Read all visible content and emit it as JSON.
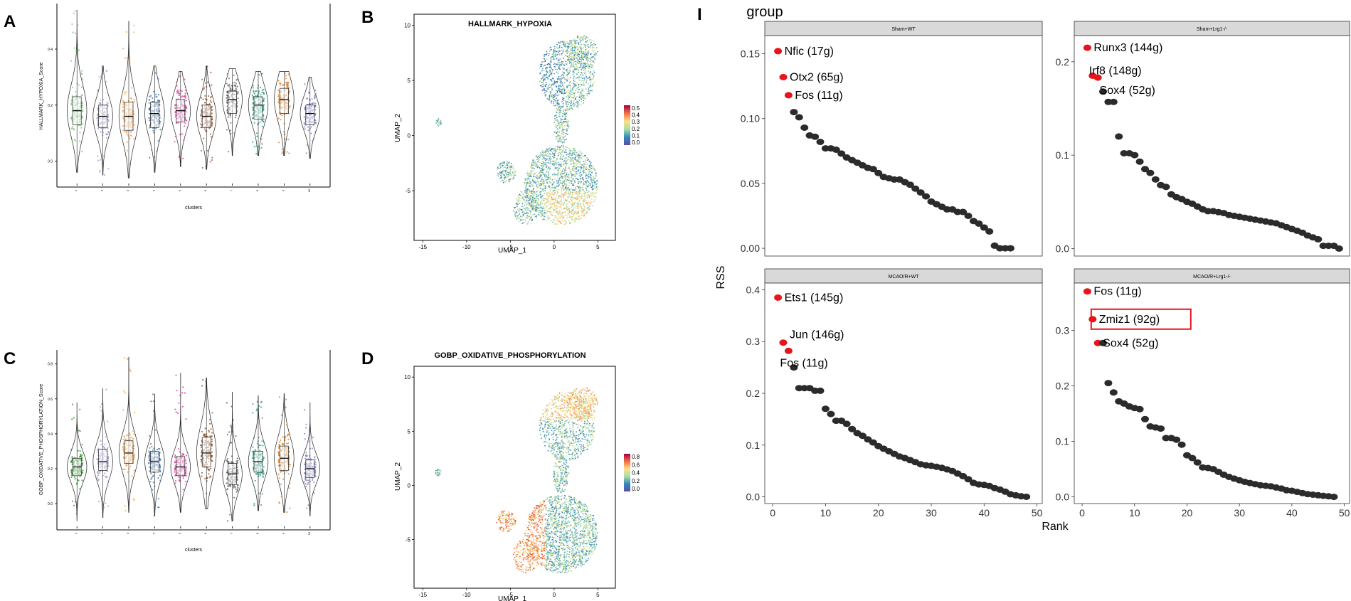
{
  "panels": {
    "A": {
      "letter": "A"
    },
    "B": {
      "letter": "B"
    },
    "C": {
      "letter": "C"
    },
    "D": {
      "letter": "D"
    },
    "I": {
      "letter": "I"
    }
  },
  "chart_data": [
    {
      "id": "A",
      "type": "violin",
      "ylabel": "HALLMARK_HYPOXIA_Score",
      "xlabel": "clusters",
      "categories": [
        "1",
        "2",
        "3",
        "4",
        "5",
        "6",
        "7",
        "8",
        "9",
        "10"
      ],
      "ylim": [
        -0.08,
        0.55
      ],
      "yticks": [
        0.0,
        0.2,
        0.4
      ],
      "colors": [
        "#74c476",
        "#9e9ac8",
        "#f0a040",
        "#3a6fa8",
        "#e0309a",
        "#a0522d",
        "#666666",
        "#1a9a7a",
        "#d97a1a",
        "#7a7ab8"
      ],
      "medians": [
        0.18,
        0.16,
        0.16,
        0.17,
        0.18,
        0.16,
        0.22,
        0.2,
        0.22,
        0.17
      ],
      "q1": [
        0.13,
        0.12,
        0.11,
        0.12,
        0.14,
        0.12,
        0.17,
        0.15,
        0.17,
        0.13
      ],
      "q3": [
        0.23,
        0.2,
        0.21,
        0.21,
        0.22,
        0.2,
        0.25,
        0.23,
        0.26,
        0.2
      ],
      "min": [
        -0.04,
        -0.05,
        -0.06,
        -0.04,
        -0.02,
        -0.03,
        0.02,
        0.02,
        0.02,
        0.01
      ],
      "max": [
        0.54,
        0.34,
        0.5,
        0.34,
        0.32,
        0.34,
        0.33,
        0.32,
        0.32,
        0.3
      ]
    },
    {
      "id": "C",
      "type": "violin",
      "ylabel": "GOBP_OXIDATIVE_PHOSPHORYLATION_Score",
      "xlabel": "clusters",
      "categories": [
        "1",
        "2",
        "3",
        "4",
        "5",
        "6",
        "7",
        "8",
        "9",
        "10"
      ],
      "ylim": [
        -0.13,
        0.86
      ],
      "yticks": [
        0.0,
        0.2,
        0.4,
        0.6,
        0.8
      ],
      "colors": [
        "#2e8b2e",
        "#9e9ac8",
        "#f0a040",
        "#3a6fa8",
        "#e0309a",
        "#8b4513",
        "#555555",
        "#1a9a7a",
        "#d97a1a",
        "#7a7ab8"
      ],
      "medians": [
        0.21,
        0.24,
        0.29,
        0.24,
        0.21,
        0.29,
        0.17,
        0.24,
        0.26,
        0.2
      ],
      "q1": [
        0.16,
        0.19,
        0.23,
        0.18,
        0.16,
        0.21,
        0.11,
        0.18,
        0.19,
        0.15
      ],
      "q3": [
        0.26,
        0.31,
        0.36,
        0.3,
        0.27,
        0.38,
        0.23,
        0.3,
        0.33,
        0.25
      ],
      "min": [
        -0.1,
        -0.08,
        -0.05,
        -0.07,
        -0.05,
        -0.03,
        -0.1,
        -0.04,
        -0.05,
        -0.07
      ],
      "max": [
        0.58,
        0.66,
        0.84,
        0.63,
        0.75,
        0.72,
        0.64,
        0.62,
        0.63,
        0.58
      ]
    },
    {
      "id": "B",
      "type": "scatter",
      "title": "HALLMARK_HYPOXIA",
      "xlabel": "UMAP_1",
      "ylabel": "UMAP_2",
      "xlim": [
        -16,
        7
      ],
      "ylim": [
        -9.5,
        11
      ],
      "xticks": [
        -15,
        -10,
        -5,
        0,
        5
      ],
      "yticks": [
        -5,
        0,
        5,
        10
      ],
      "legend": {
        "ticks": [
          "0.5",
          "0.4",
          "0.3",
          "0.2",
          "0.1",
          "0.0"
        ]
      },
      "points_description": "UMAP embedding colored by score"
    },
    {
      "id": "D",
      "type": "scatter",
      "title": "GOBP_OXIDATIVE_PHOSPHORYLATION",
      "xlabel": "UMAP_1",
      "ylabel": "UMAP_2",
      "xlim": [
        -16,
        7
      ],
      "ylim": [
        -9.5,
        11
      ],
      "xticks": [
        -15,
        -10,
        -5,
        0,
        5
      ],
      "yticks": [
        -5,
        0,
        5,
        10
      ],
      "legend": {
        "ticks": [
          "0.8",
          "0.6",
          "0.4",
          "0.2",
          "0.0"
        ]
      },
      "points_description": "UMAP embedding colored by score"
    },
    {
      "id": "I",
      "type": "scatter",
      "title": "group",
      "xlabel": "Rank",
      "ylabel": "RSS",
      "xticks": [
        0,
        10,
        20,
        30,
        40,
        50
      ],
      "facets": [
        {
          "name": "Sham+WT",
          "ylim": [
            -0.006,
            0.164
          ],
          "yticks": [
            0.0,
            0.05,
            0.1,
            0.15
          ],
          "ytick_labels": [
            "0.00",
            "0.05",
            "0.10",
            "0.15"
          ],
          "labels": [
            {
              "text": "Nfic (17g)",
              "rank": 1,
              "rss": 0.152
            },
            {
              "text": "Otx2 (65g)",
              "rank": 2,
              "rss": 0.132
            },
            {
              "text": "Fos (11g)",
              "rank": 3,
              "rss": 0.118
            }
          ],
          "values": [
            0.152,
            0.132,
            0.118,
            0.105,
            0.101,
            0.093,
            0.087,
            0.086,
            0.082,
            0.077,
            0.077,
            0.076,
            0.073,
            0.07,
            0.068,
            0.066,
            0.064,
            0.062,
            0.061,
            0.058,
            0.055,
            0.054,
            0.053,
            0.053,
            0.051,
            0.049,
            0.046,
            0.043,
            0.04,
            0.036,
            0.034,
            0.032,
            0.03,
            0.03,
            0.028,
            0.028,
            0.025,
            0.021,
            0.019,
            0.016,
            0.013,
            0.002,
            0.0,
            0.0,
            0.0
          ]
        },
        {
          "name": "Sham+Lrg1-/-",
          "ylim": [
            -0.008,
            0.228
          ],
          "yticks": [
            0.0,
            0.1,
            0.2
          ],
          "ytick_labels": [
            "0.0",
            "0.1",
            "0.2"
          ],
          "labels": [
            {
              "text": "Runx3 (144g)",
              "rank": 1,
              "rss": 0.215
            },
            {
              "text": "Irf8 (148g)",
              "rank": 2,
              "rss": 0.185
            },
            {
              "text": "Sox4 (52g)",
              "rank": 4,
              "rss": 0.168
            }
          ],
          "values": [
            0.215,
            0.185,
            0.183,
            0.168,
            0.157,
            0.157,
            0.12,
            0.102,
            0.102,
            0.1,
            0.093,
            0.085,
            0.081,
            0.074,
            0.068,
            0.066,
            0.058,
            0.055,
            0.053,
            0.05,
            0.048,
            0.045,
            0.042,
            0.04,
            0.04,
            0.039,
            0.038,
            0.036,
            0.035,
            0.034,
            0.033,
            0.032,
            0.031,
            0.03,
            0.029,
            0.028,
            0.027,
            0.025,
            0.023,
            0.021,
            0.019,
            0.017,
            0.014,
            0.012,
            0.01,
            0.003,
            0.003,
            0.003,
            0.0
          ]
        },
        {
          "name": "MCAO/R+WT",
          "ylim": [
            -0.013,
            0.413
          ],
          "yticks": [
            0.0,
            0.1,
            0.2,
            0.3,
            0.4
          ],
          "ytick_labels": [
            "0.0",
            "0.1",
            "0.2",
            "0.3",
            "0.4"
          ],
          "labels": [
            {
              "text": "Ets1 (145g)",
              "rank": 1,
              "rss": 0.385
            },
            {
              "text": "Jun (146g)",
              "rank": 2,
              "rss": 0.298
            },
            {
              "text": "Fos (11g)",
              "rank": 3,
              "rss": 0.282
            }
          ],
          "values": [
            0.385,
            0.298,
            0.282,
            0.25,
            0.21,
            0.21,
            0.21,
            0.205,
            0.205,
            0.17,
            0.16,
            0.147,
            0.147,
            0.141,
            0.131,
            0.123,
            0.118,
            0.111,
            0.105,
            0.098,
            0.093,
            0.088,
            0.083,
            0.078,
            0.075,
            0.071,
            0.067,
            0.063,
            0.061,
            0.06,
            0.058,
            0.056,
            0.053,
            0.05,
            0.045,
            0.04,
            0.034,
            0.027,
            0.024,
            0.023,
            0.021,
            0.017,
            0.014,
            0.01,
            0.005,
            0.003,
            0.001,
            0.0
          ]
        },
        {
          "name": "MCAO/R+Lrg1-/-",
          "ylim": [
            -0.012,
            0.385
          ],
          "yticks": [
            0.0,
            0.1,
            0.2,
            0.3
          ],
          "ytick_labels": [
            "0.0",
            "0.1",
            "0.2",
            "0.3"
          ],
          "labels": [
            {
              "text": "Fos (11g)",
              "rank": 1,
              "rss": 0.37
            },
            {
              "text": "Zmiz1 (92g)",
              "rank": 2,
              "rss": 0.32,
              "highlight": true
            },
            {
              "text": "Sox4 (52g)",
              "rank": 3,
              "rss": 0.277
            }
          ],
          "values": [
            0.37,
            0.32,
            0.277,
            0.277,
            0.205,
            0.188,
            0.172,
            0.168,
            0.163,
            0.16,
            0.158,
            0.14,
            0.127,
            0.125,
            0.123,
            0.106,
            0.106,
            0.103,
            0.094,
            0.075,
            0.07,
            0.062,
            0.053,
            0.052,
            0.05,
            0.045,
            0.04,
            0.036,
            0.033,
            0.03,
            0.027,
            0.025,
            0.023,
            0.021,
            0.02,
            0.019,
            0.017,
            0.015,
            0.012,
            0.011,
            0.009,
            0.007,
            0.005,
            0.004,
            0.003,
            0.002,
            0.001,
            0.0
          ]
        }
      ]
    }
  ]
}
